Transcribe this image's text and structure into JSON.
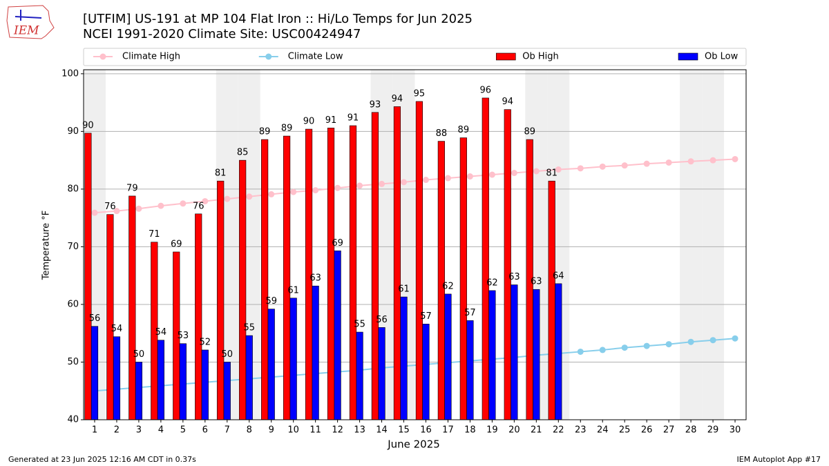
{
  "logo": "IEM",
  "footer_left": "Generated at 23 Jun 2025 12:16 AM CDT in 0.37s",
  "footer_right": "IEM Autoplot App #17",
  "chart_data": {
    "type": "bar",
    "title": "[UTFIM] US-191 at MP 104 Flat Iron  :: Hi/Lo Temps for Jun 2025",
    "subtitle": "NCEI 1991-2020 Climate Site: USC00424947",
    "x_label": "June 2025",
    "y_label": "Temperature °F",
    "x": [
      1,
      2,
      3,
      4,
      5,
      6,
      7,
      8,
      9,
      10,
      11,
      12,
      13,
      14,
      15,
      16,
      17,
      18,
      19,
      20,
      21,
      22,
      23,
      24,
      25,
      26,
      27,
      28,
      29,
      30
    ],
    "xlim": [
      0.5,
      30.5
    ],
    "xticks": [
      1,
      2,
      3,
      4,
      5,
      6,
      7,
      8,
      9,
      10,
      11,
      12,
      13,
      14,
      15,
      16,
      17,
      18,
      19,
      20,
      21,
      22,
      23,
      24,
      25,
      26,
      27,
      28,
      29,
      30
    ],
    "ylim": [
      40,
      100.7
    ],
    "yticks": [
      40,
      50,
      60,
      70,
      80,
      90,
      100
    ],
    "grid": true,
    "weekend_days": [
      1,
      7,
      8,
      14,
      15,
      21,
      22,
      28,
      29
    ],
    "weekend_color": "#efefef",
    "series": [
      {
        "name": "Climate High",
        "type": "line",
        "color": "#ffc0cb",
        "values": [
          75.9,
          76.2,
          76.6,
          77.1,
          77.5,
          77.9,
          78.3,
          78.7,
          79.1,
          79.5,
          79.8,
          80.2,
          80.6,
          80.9,
          81.2,
          81.6,
          81.9,
          82.2,
          82.5,
          82.8,
          83.1,
          83.4,
          83.6,
          83.9,
          84.1,
          84.4,
          84.6,
          84.8,
          85.0,
          85.2
        ]
      },
      {
        "name": "Climate Low",
        "type": "line",
        "color": "#87ceeb",
        "values": [
          45.0,
          45.3,
          45.6,
          45.9,
          46.2,
          46.5,
          46.8,
          47.1,
          47.4,
          47.7,
          48.0,
          48.3,
          48.6,
          49.0,
          49.3,
          49.6,
          49.9,
          50.2,
          50.5,
          50.8,
          51.2,
          51.5,
          51.8,
          52.1,
          52.5,
          52.8,
          53.1,
          53.5,
          53.8,
          54.1
        ]
      },
      {
        "name": "Ob High",
        "type": "bar",
        "color": "#ff0000",
        "values": [
          89.7,
          75.6,
          78.8,
          70.8,
          69.1,
          75.7,
          81.4,
          85.0,
          88.6,
          89.2,
          90.4,
          90.6,
          91.0,
          93.3,
          94.3,
          95.2,
          88.3,
          88.9,
          95.8,
          93.8,
          88.6,
          81.4,
          null,
          null,
          null,
          null,
          null,
          null,
          null,
          null
        ],
        "value_labels": [
          "90",
          "76",
          "79",
          "71",
          "69",
          "76",
          "81",
          "85",
          "89",
          "89",
          "90",
          "91",
          "91",
          "93",
          "94",
          "95",
          "88",
          "89",
          "96",
          "94",
          "89",
          "81",
          null,
          null,
          null,
          null,
          null,
          null,
          null,
          null
        ]
      },
      {
        "name": "Ob Low",
        "type": "bar",
        "color": "#0000ff",
        "values": [
          56.2,
          54.4,
          50.0,
          53.8,
          53.2,
          52.1,
          50.0,
          54.6,
          59.2,
          61.1,
          63.2,
          69.3,
          55.2,
          56.0,
          61.3,
          56.6,
          61.8,
          57.2,
          62.4,
          63.4,
          62.6,
          63.6,
          null,
          null,
          null,
          null,
          null,
          null,
          null,
          null
        ],
        "value_labels": [
          "56",
          "54",
          "50",
          "54",
          "53",
          "52",
          "50",
          "55",
          "59",
          "61",
          "63",
          "69",
          "55",
          "56",
          "61",
          "57",
          "62",
          "57",
          "62",
          "63",
          "63",
          "64",
          null,
          null,
          null,
          null,
          null,
          null,
          null,
          null
        ]
      }
    ]
  }
}
